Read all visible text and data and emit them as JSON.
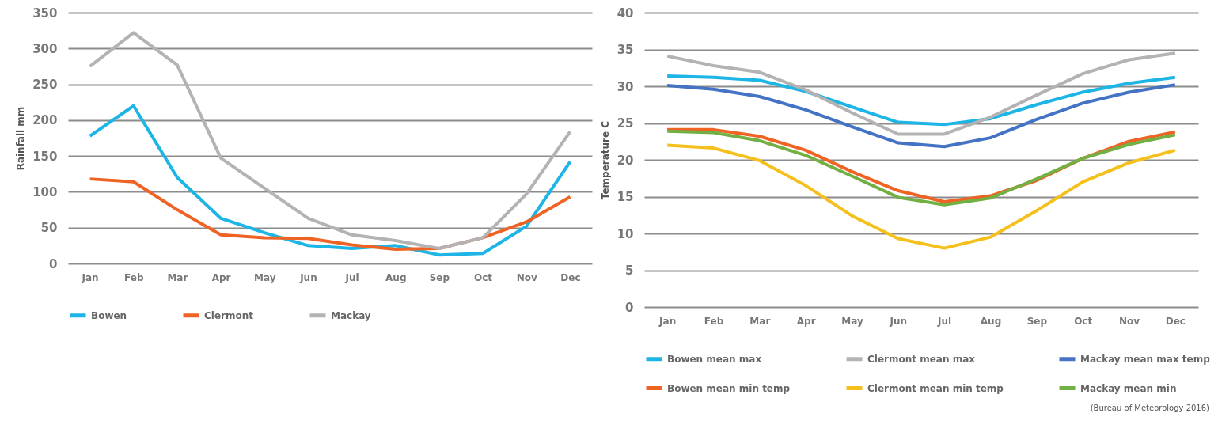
{
  "chart_data": [
    {
      "type": "line",
      "ylabel": "Rainfall mm",
      "categories": [
        "Jan",
        "Feb",
        "Mar",
        "Apr",
        "May",
        "Jun",
        "Jul",
        "Aug",
        "Sep",
        "Oct",
        "Nov",
        "Dec"
      ],
      "ylim": [
        0,
        350
      ],
      "yticks": [
        0,
        50,
        100,
        150,
        200,
        250,
        300,
        350
      ],
      "grid": "y",
      "legend": "bottom",
      "marker": "none",
      "line_style": "solid",
      "series": [
        {
          "name": "Bowen",
          "color": "#1cb5e6",
          "values": [
            178,
            220,
            120,
            63,
            43,
            25,
            21,
            25,
            12,
            14,
            52,
            142
          ]
        },
        {
          "name": "Clermont",
          "color": "#ef6325",
          "values": [
            118,
            114,
            75,
            40,
            36,
            35,
            26,
            20,
            21,
            36,
            58,
            93
          ]
        },
        {
          "name": "Mackay",
          "color": "#b3b3b3",
          "values": [
            275,
            322,
            277,
            147,
            105,
            63,
            40,
            32,
            21,
            36,
            97,
            184
          ]
        }
      ]
    },
    {
      "type": "line",
      "ylabel": "Temperature C",
      "categories": [
        "Jan",
        "Feb",
        "Mar",
        "Apr",
        "May",
        "Jun",
        "Jul",
        "Aug",
        "Sep",
        "Oct",
        "Nov",
        "Dec"
      ],
      "ylim": [
        0,
        40
      ],
      "yticks": [
        0,
        5,
        10,
        15,
        20,
        25,
        30,
        35,
        40
      ],
      "grid": "y",
      "legend": "bottom",
      "marker": "none",
      "line_style": "solid",
      "annotations": [
        "(Bureau of Meteorology 2016)"
      ],
      "series": [
        {
          "name": "Bowen mean max",
          "color": "#1cb5e6",
          "values": [
            31.4,
            31.2,
            30.8,
            29.3,
            27.2,
            25.1,
            24.8,
            25.6,
            27.5,
            29.2,
            30.4,
            31.2
          ]
        },
        {
          "name": "Clermont mean max",
          "color": "#b3b3b3",
          "values": [
            34.1,
            32.8,
            31.9,
            29.5,
            26.4,
            23.5,
            23.5,
            25.8,
            28.8,
            31.7,
            33.6,
            34.5
          ]
        },
        {
          "name": "Mackay mean max temp",
          "color": "#4472c4",
          "values": [
            30.1,
            29.6,
            28.6,
            26.8,
            24.5,
            22.3,
            21.8,
            23.0,
            25.5,
            27.7,
            29.2,
            30.2
          ]
        },
        {
          "name": "Bowen mean min temp",
          "color": "#ef6325",
          "values": [
            24.1,
            24.1,
            23.2,
            21.3,
            18.4,
            15.8,
            14.3,
            15.1,
            17.2,
            20.2,
            22.5,
            23.8
          ]
        },
        {
          "name": "Clermont mean min temp",
          "color": "#f5c01b",
          "values": [
            22.0,
            21.6,
            19.9,
            16.5,
            12.4,
            9.3,
            8.0,
            9.5,
            13.1,
            17.0,
            19.6,
            21.3
          ]
        },
        {
          "name": "Mackay mean min",
          "color": "#72b043",
          "values": [
            23.9,
            23.7,
            22.6,
            20.6,
            17.8,
            14.9,
            13.9,
            14.8,
            17.4,
            20.2,
            22.1,
            23.4
          ]
        }
      ]
    }
  ]
}
